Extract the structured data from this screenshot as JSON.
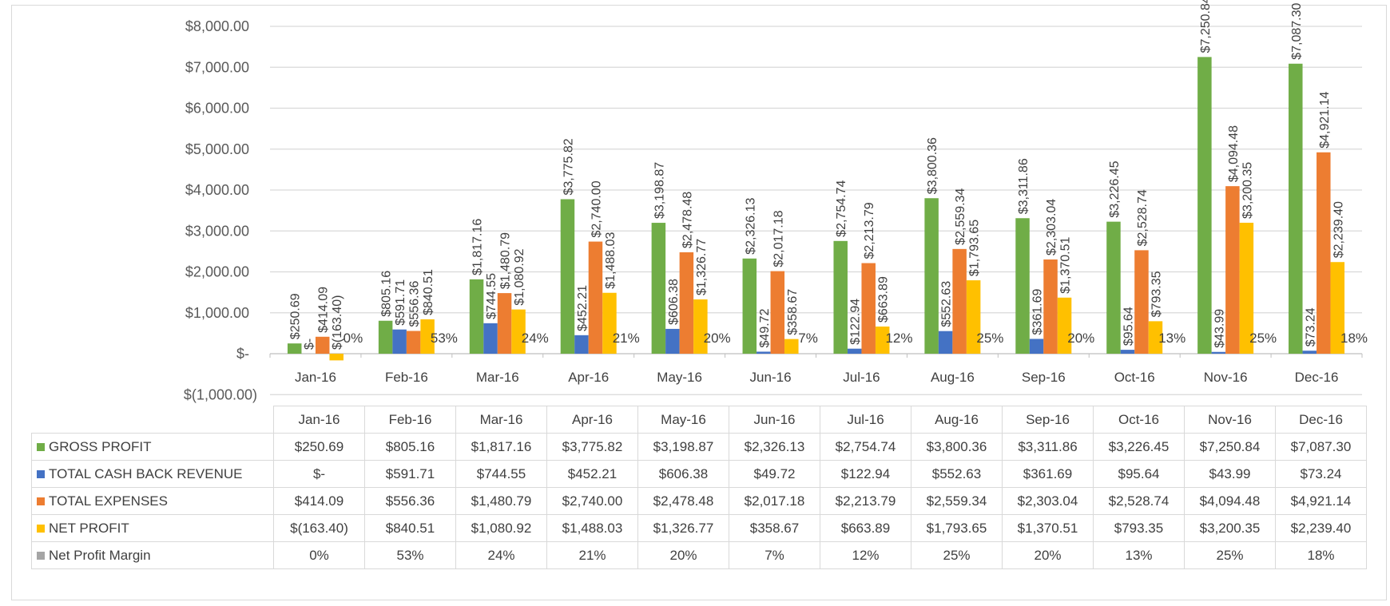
{
  "chart_data": {
    "type": "bar",
    "categories": [
      "Jan-16",
      "Feb-16",
      "Mar-16",
      "Apr-16",
      "May-16",
      "Jun-16",
      "Jul-16",
      "Aug-16",
      "Sep-16",
      "Oct-16",
      "Nov-16",
      "Dec-16"
    ],
    "ylim": [
      -1000,
      8000
    ],
    "yticks": [
      "$8,000.00",
      "$7,000.00",
      "$6,000.00",
      "$5,000.00",
      "$4,000.00",
      "$3,000.00",
      "$2,000.00",
      "$1,000.00",
      "$-",
      "$(1,000.00)"
    ],
    "grid": true,
    "legend": "data-table",
    "series": [
      {
        "name": "GROSS PROFIT",
        "color": "#70ad47",
        "values": [
          250.69,
          805.16,
          1817.16,
          3775.82,
          3198.87,
          2326.13,
          2754.74,
          3800.36,
          3311.86,
          3226.45,
          7250.84,
          7087.3
        ],
        "labels": [
          "$250.69",
          "$805.16",
          "$1,817.16",
          "$3,775.82",
          "$3,198.87",
          "$2,326.13",
          "$2,754.74",
          "$3,800.36",
          "$3,311.86",
          "$3,226.45",
          "$7,250.84",
          "$7,087.30"
        ]
      },
      {
        "name": "TOTAL CASH BACK REVENUE",
        "color": "#4472c4",
        "values": [
          0,
          591.71,
          744.55,
          452.21,
          606.38,
          49.72,
          122.94,
          552.63,
          361.69,
          95.64,
          43.99,
          73.24
        ],
        "labels": [
          "$-",
          "$591.71",
          "$744.55",
          "$452.21",
          "$606.38",
          "$49.72",
          "$122.94",
          "$552.63",
          "$361.69",
          "$95.64",
          "$43.99",
          "$73.24"
        ]
      },
      {
        "name": "TOTAL EXPENSES",
        "color": "#ed7d31",
        "values": [
          414.09,
          556.36,
          1480.79,
          2740.0,
          2478.48,
          2017.18,
          2213.79,
          2559.34,
          2303.04,
          2528.74,
          4094.48,
          4921.14
        ],
        "labels": [
          "$414.09",
          "$556.36",
          "$1,480.79",
          "$2,740.00",
          "$2,478.48",
          "$2,017.18",
          "$2,213.79",
          "$2,559.34",
          "$2,303.04",
          "$2,528.74",
          "$4,094.48",
          "$4,921.14"
        ]
      },
      {
        "name": "NET PROFIT",
        "color": "#ffc000",
        "values": [
          -163.4,
          840.51,
          1080.92,
          1488.03,
          1326.77,
          358.67,
          663.89,
          1793.65,
          1370.51,
          793.35,
          3200.35,
          2239.4
        ],
        "labels": [
          "$(163.40)",
          "$840.51",
          "$1,080.92",
          "$1,488.03",
          "$1,326.77",
          "$358.67",
          "$663.89",
          "$1,793.65",
          "$1,370.51",
          "$793.35",
          "$3,200.35",
          "$2,239.40"
        ]
      },
      {
        "name": "Net Profit Margin",
        "color": "#a5a5a5",
        "values": [
          0,
          53,
          24,
          21,
          20,
          7,
          12,
          25,
          20,
          13,
          25,
          18
        ],
        "labels": [
          "0%",
          "53%",
          "24%",
          "21%",
          "20%",
          "7%",
          "12%",
          "25%",
          "20%",
          "13%",
          "25%",
          "18%"
        ]
      }
    ]
  }
}
